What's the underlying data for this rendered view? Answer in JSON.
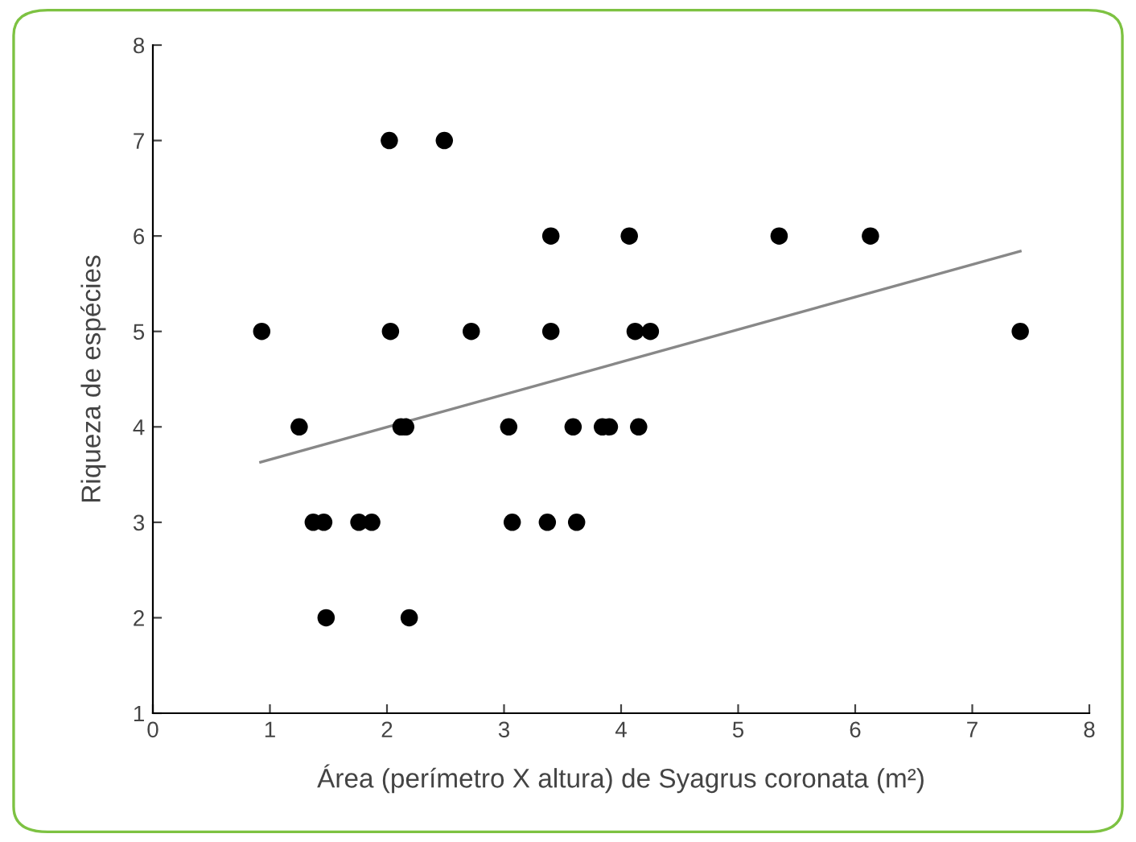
{
  "chart_data": {
    "type": "scatter",
    "xlabel": "Área (perímetro X altura) de Syagrus coronata (m²)",
    "ylabel": "Riqueza de espécies",
    "x": [
      0.93,
      1.25,
      1.37,
      1.46,
      1.48,
      1.76,
      1.87,
      2.02,
      2.49,
      2.03,
      2.12,
      2.16,
      2.19,
      2.72,
      3.04,
      3.07,
      3.4,
      3.4,
      3.37,
      3.59,
      3.62,
      3.84,
      3.9,
      4.07,
      4.12,
      4.15,
      4.25,
      5.35,
      6.13,
      7.41
    ],
    "series": [
      {
        "color": "#000000",
        "marker": "circle",
        "values": [
          5,
          4,
          3,
          3,
          2,
          3,
          3,
          7,
          7,
          5,
          4,
          4,
          2,
          5,
          4,
          3,
          6,
          5,
          3,
          4,
          3,
          4,
          4,
          6,
          5,
          4,
          5,
          6,
          6,
          5
        ]
      },
      {
        "type": "line",
        "color": "#888888",
        "x": [
          0.92,
          7.41
        ],
        "values": [
          3.63,
          5.84
        ]
      }
    ],
    "xlim": [
      0,
      8
    ],
    "ylim": [
      1,
      8
    ],
    "xticks": [
      0,
      1,
      2,
      3,
      4,
      5,
      6,
      7,
      8
    ],
    "yticks": [
      1,
      2,
      3,
      4,
      5,
      6,
      7,
      8
    ],
    "grid": false,
    "legend": false
  }
}
